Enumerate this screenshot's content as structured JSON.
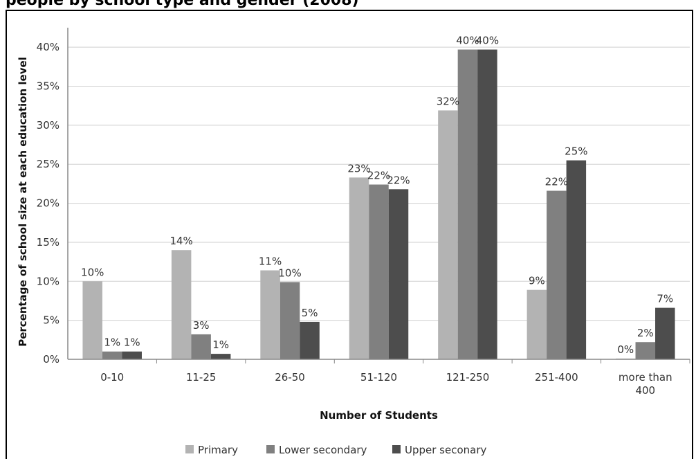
{
  "page_title_cut": "people by school type and gender (2008)",
  "chart_data": {
    "type": "bar",
    "categories": [
      "0-10",
      "11-25",
      "26-50",
      "51-120",
      "121-250",
      "251-400",
      "more than 400"
    ],
    "series": [
      {
        "name": "Primary",
        "color": "#b3b3b3",
        "values": [
          10,
          14,
          11.4,
          23.3,
          31.9,
          8.9,
          0.1
        ],
        "labels": [
          "10%",
          "14%",
          "11%",
          "23%",
          "32%",
          "9%",
          "0%"
        ]
      },
      {
        "name": "Lower secondary",
        "color": "#808080",
        "values": [
          1,
          3.2,
          9.9,
          22.4,
          39.7,
          21.6,
          2.2
        ],
        "labels": [
          "1%",
          "3%",
          "10%",
          "22%",
          "40%",
          "22%",
          "2%"
        ]
      },
      {
        "name": "Upper seconary",
        "color": "#4d4d4d",
        "values": [
          1,
          0.7,
          4.8,
          21.8,
          39.7,
          25.5,
          6.6
        ],
        "labels": [
          "1%",
          "1%",
          "5%",
          "22%",
          "40%",
          "25%",
          "7%"
        ]
      }
    ],
    "yticks": [
      "0%",
      "5%",
      "10%",
      "15%",
      "20%",
      "25%",
      "30%",
      "35%",
      "40%"
    ],
    "ylim": [
      0,
      42.5
    ],
    "xlabel": "Number of Students",
    "ylabel": "Percentage of school size at each education level",
    "legend_position": "bottom",
    "grid": true
  }
}
